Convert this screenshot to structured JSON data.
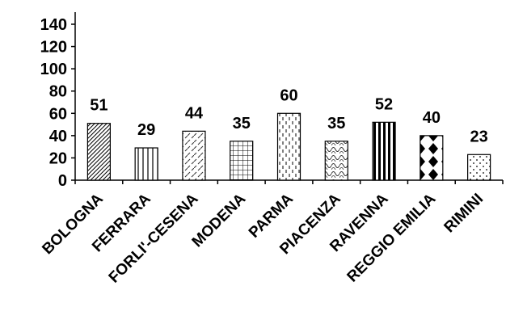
{
  "chart_data": {
    "type": "bar",
    "title": "",
    "xlabel": "",
    "ylabel": "",
    "ylim": [
      0,
      140
    ],
    "yticks": [
      0,
      20,
      40,
      60,
      80,
      100,
      120,
      140
    ],
    "grid": false,
    "legend": "none",
    "categories": [
      "BOLOGNA",
      "FERRARA",
      "FORLI'-CESENA",
      "MODENA",
      "PARMA",
      "PIACENZA",
      "RAVENNA",
      "REGGIO EMILIA",
      "RIMINI"
    ],
    "values": [
      51,
      29,
      44,
      35,
      60,
      35,
      52,
      40,
      23
    ],
    "patterns": [
      "diagonal-dense",
      "vertical-lines",
      "diagonal-dashed",
      "grid",
      "dotted-vertical-dashes",
      "waves",
      "vertical-bold",
      "diamonds",
      "sparse-dots"
    ]
  }
}
